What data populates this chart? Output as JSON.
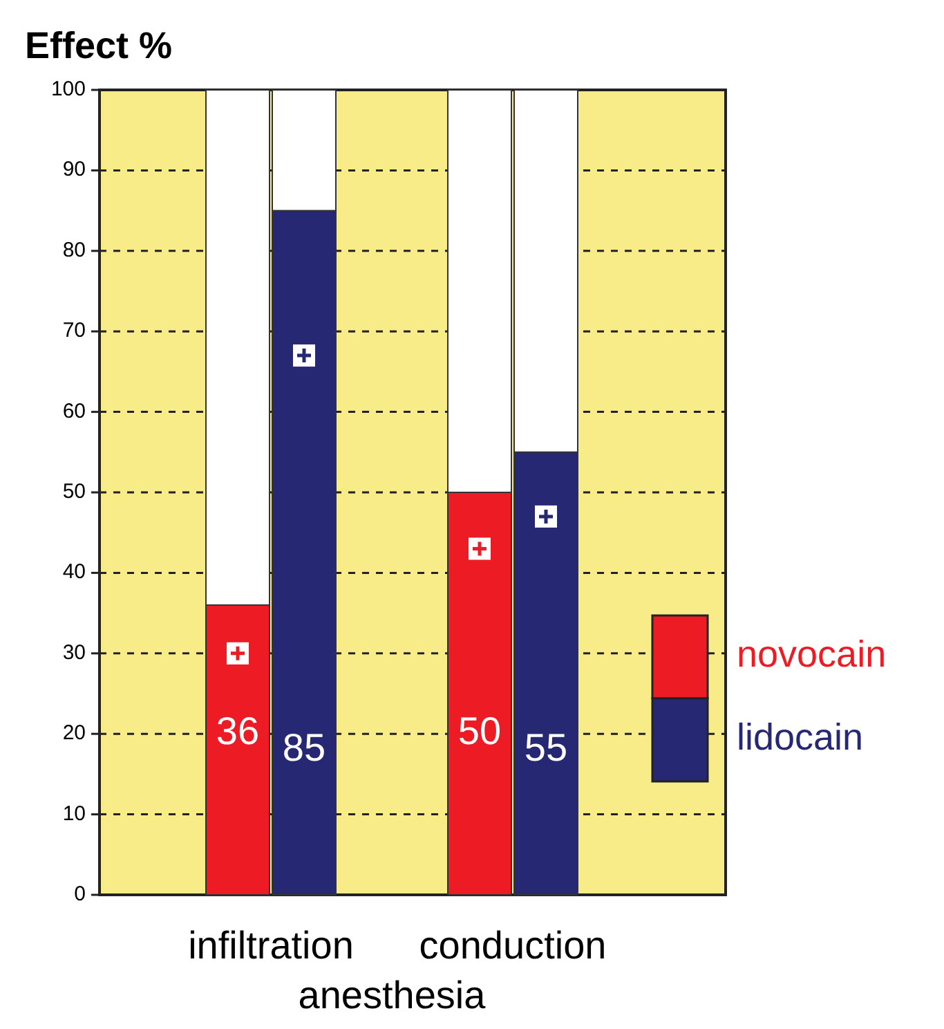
{
  "chart_data": {
    "type": "bar",
    "title": "Effect %",
    "categories": [
      "infiltration",
      "conduction"
    ],
    "xlabel": "anesthesia",
    "series": [
      {
        "name": "novocain",
        "color": "#ed1c24",
        "values": [
          36,
          50
        ],
        "value_labels": [
          "36",
          "50"
        ]
      },
      {
        "name": "lidocain",
        "color": "#262873",
        "values": [
          85,
          55
        ],
        "value_labels": [
          "85",
          "55"
        ]
      },
      {
        "type": "scatter",
        "color": "#ffffff",
        "marker": "square",
        "values": [
          30,
          43
        ]
      },
      {
        "type": "scatter",
        "color": "#ffffff",
        "marker": "square",
        "values": [
          67,
          47
        ]
      }
    ],
    "ylim": [
      0,
      100
    ],
    "yticks": [
      0,
      10,
      20,
      30,
      40,
      50,
      60,
      70,
      80,
      90,
      100
    ],
    "grid": "y",
    "legend": "right"
  }
}
